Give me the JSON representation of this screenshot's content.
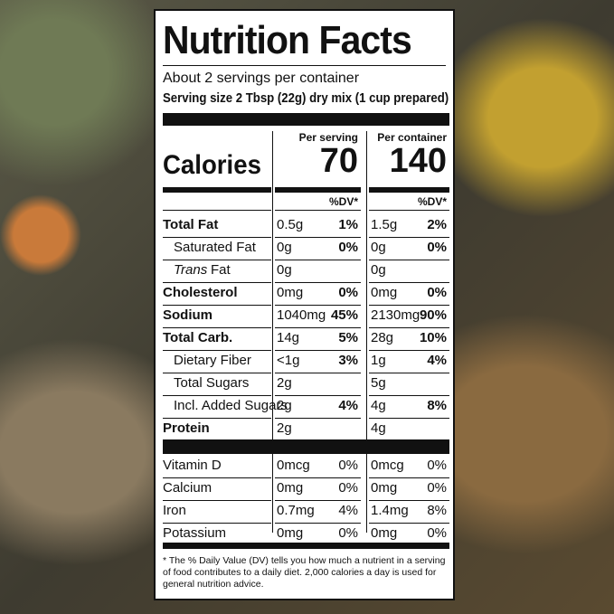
{
  "title": "Nutrition Facts",
  "servings": "About 2 servings per container",
  "serving_size": "Serving size 2 Tbsp (22g) dry mix (1 cup prepared)",
  "calories": {
    "label": "Calories",
    "per_serving_header": "Per serving",
    "per_container_header": "Per container",
    "per_serving": "70",
    "per_container": "140"
  },
  "dv_header": "%DV*",
  "nutrients": [
    {
      "name": "Total Fat",
      "level": 0,
      "serving": "0.5g",
      "serving_dv": "1%",
      "container": "1.5g",
      "container_dv": "2%"
    },
    {
      "name": "Saturated Fat",
      "level": 1,
      "serving": "0g",
      "serving_dv": "0%",
      "container": "0g",
      "container_dv": "0%"
    },
    {
      "name_italic": "Trans",
      "name": "Fat",
      "level": 1,
      "serving": "0g",
      "container": "0g"
    },
    {
      "name": "Cholesterol",
      "level": 0,
      "serving": "0mg",
      "serving_dv": "0%",
      "container": "0mg",
      "container_dv": "0%"
    },
    {
      "name": "Sodium",
      "level": 0,
      "serving": "1040mg",
      "serving_dv": "45%",
      "container": "2130mg",
      "container_dv": "90%"
    },
    {
      "name": "Total Carb.",
      "level": 0,
      "serving": "14g",
      "serving_dv": "5%",
      "container": "28g",
      "container_dv": "10%"
    },
    {
      "name": "Dietary Fiber",
      "level": 1,
      "serving": "<1g",
      "serving_dv": "3%",
      "container": "1g",
      "container_dv": "4%"
    },
    {
      "name": "Total Sugars",
      "level": 1,
      "serving": "2g",
      "container": "5g"
    },
    {
      "name": "Incl. Added Sugars",
      "level": 1,
      "serving": "2g",
      "serving_dv": "4%",
      "container": "4g",
      "container_dv": "8%"
    },
    {
      "name": "Protein",
      "level": 0,
      "serving": "2g",
      "container": "4g"
    }
  ],
  "micronutrients": [
    {
      "name": "Vitamin D",
      "serving": "0mcg",
      "serving_dv": "0%",
      "container": "0mcg",
      "container_dv": "0%"
    },
    {
      "name": "Calcium",
      "serving": "0mg",
      "serving_dv": "0%",
      "container": "0mg",
      "container_dv": "0%"
    },
    {
      "name": "Iron",
      "serving": "0.7mg",
      "serving_dv": "4%",
      "container": "1.4mg",
      "container_dv": "8%"
    },
    {
      "name": "Potassium",
      "serving": "0mg",
      "serving_dv": "0%",
      "container": "0mg",
      "container_dv": "0%"
    }
  ],
  "footnote": "* The % Daily Value (DV) tells you how much a nutrient in a serving of food contributes to a daily diet. 2,000 calories a day is used for general nutrition advice."
}
